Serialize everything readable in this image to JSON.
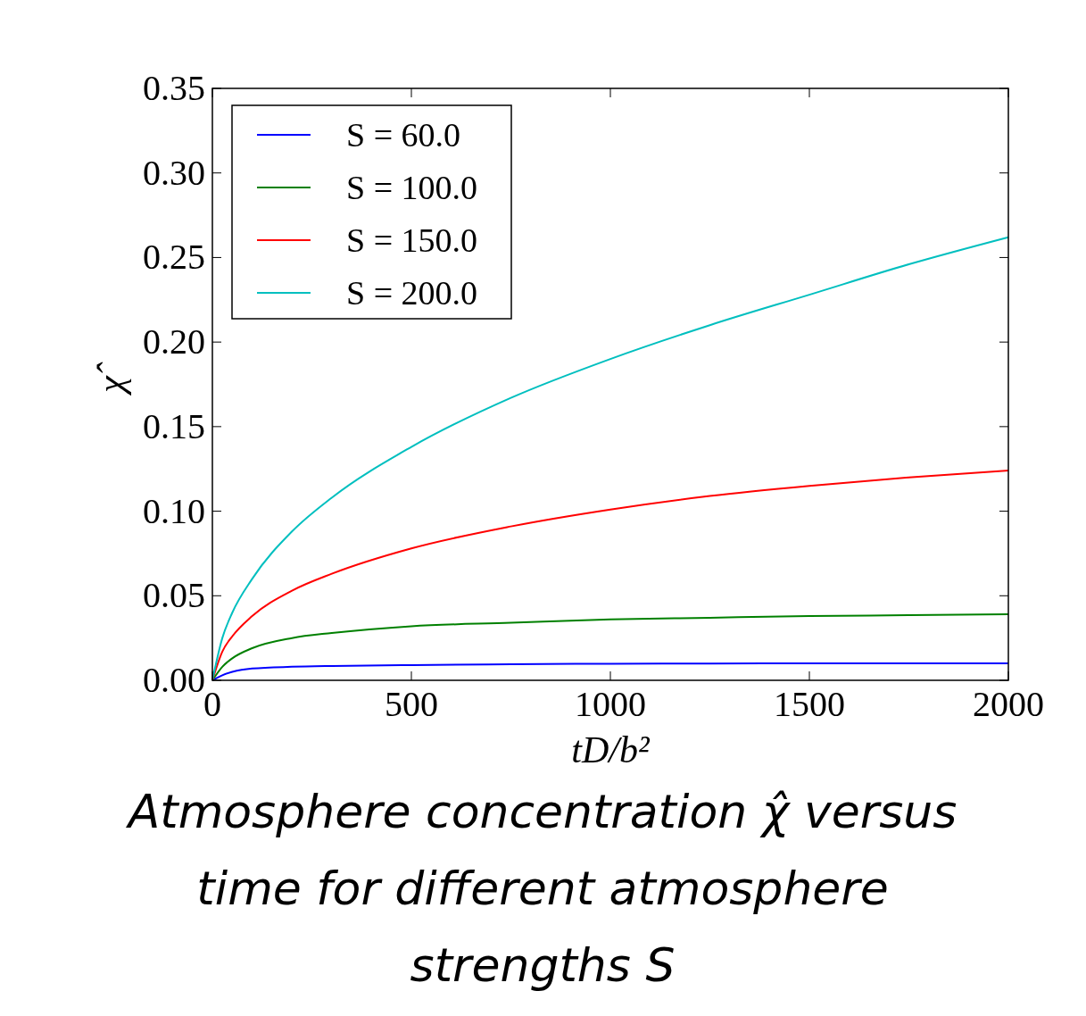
{
  "chart_data": {
    "type": "line",
    "xlabel": "tD/b²",
    "ylabel": "χ̂",
    "annotations": [
      "Atmosphere concentration χ̂ versus time for different atmosphere strengths S"
    ],
    "x": [
      0,
      25,
      50,
      100,
      200,
      300,
      500,
      750,
      1000,
      1250,
      1500,
      1750,
      2000
    ],
    "series": [
      {
        "name": "S = 60.0",
        "color": "#0000ff",
        "values": [
          0,
          0.003,
          0.005,
          0.007,
          0.008,
          0.0085,
          0.009,
          0.0095,
          0.0098,
          0.0099,
          0.01,
          0.01,
          0.01
        ]
      },
      {
        "name": "S = 100.0",
        "color": "#008000",
        "values": [
          0,
          0.008,
          0.013,
          0.019,
          0.025,
          0.028,
          0.032,
          0.034,
          0.036,
          0.037,
          0.038,
          0.0385,
          0.039
        ]
      },
      {
        "name": "S = 150.0",
        "color": "#ff0000",
        "values": [
          0,
          0.017,
          0.026,
          0.038,
          0.053,
          0.063,
          0.078,
          0.091,
          0.101,
          0.109,
          0.115,
          0.12,
          0.124
        ]
      },
      {
        "name": "S = 200.0",
        "color": "#00bfbf",
        "values": [
          0,
          0.025,
          0.04,
          0.06,
          0.088,
          0.108,
          0.138,
          0.167,
          0.19,
          0.21,
          0.228,
          0.246,
          0.262
        ]
      }
    ],
    "xlim": [
      0,
      2000
    ],
    "xticks": [
      0,
      500,
      1000,
      1500,
      2000
    ],
    "ylim": [
      0,
      0.35
    ],
    "yticks": [
      {
        "value": 0,
        "label": "0.00"
      },
      {
        "value": 0.05,
        "label": "0.05"
      },
      {
        "value": 0.1,
        "label": "0.10"
      },
      {
        "value": 0.15,
        "label": "0.15"
      },
      {
        "value": 0.2,
        "label": "0.20"
      },
      {
        "value": 0.25,
        "label": "0.25"
      },
      {
        "value": 0.3,
        "label": "0.30"
      },
      {
        "value": 0.35,
        "label": "0.35"
      }
    ],
    "legend": "top left",
    "grid": false,
    "line_style": "solid",
    "marker": "none"
  }
}
